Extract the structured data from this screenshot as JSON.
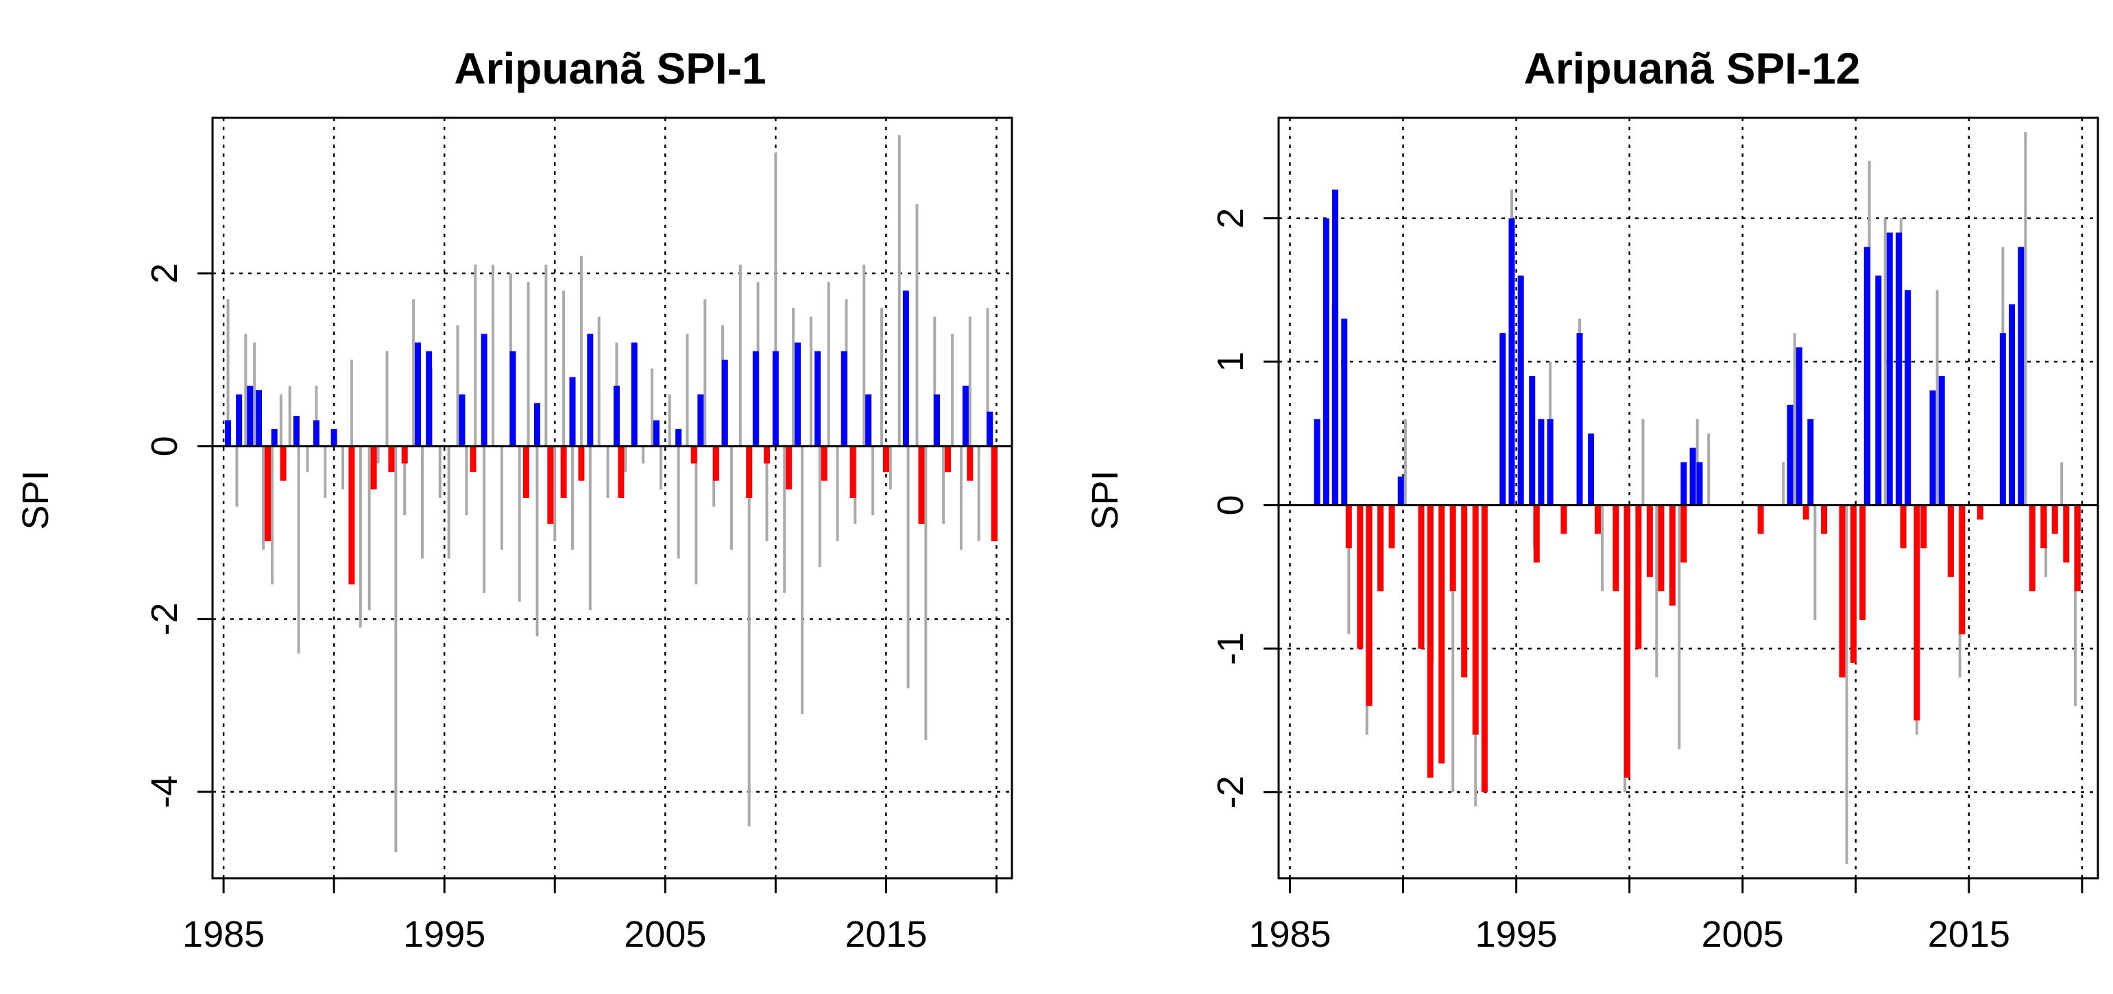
{
  "colors": {
    "positive": "#0000ff",
    "negative": "#ff0000",
    "raw": "#aaaaaa",
    "grid": "#000000"
  },
  "chart_data": [
    {
      "type": "bar",
      "title": "Aripuanã SPI-1",
      "xlabel": "",
      "ylabel": "SPI",
      "xlim": [
        1984.5,
        2020.7
      ],
      "ylim": [
        -5.0,
        3.8
      ],
      "x_ticks": [
        1985,
        1995,
        2005,
        2015
      ],
      "x_grid": [
        1985,
        1990,
        1995,
        2000,
        2005,
        2010,
        2015,
        2020
      ],
      "y_ticks": [
        -4,
        -2,
        0,
        2
      ],
      "x_tick_labels": [
        "1985",
        "1995",
        "2005",
        "2015"
      ],
      "y_tick_labels": [
        "-4",
        "-2",
        "0",
        "2"
      ],
      "series": [
        {
          "name": "SPI (raw monthly)",
          "color": "raw",
          "x": [
            1985.2,
            1985.6,
            1986.0,
            1986.4,
            1986.8,
            1987.2,
            1987.6,
            1988.0,
            1988.4,
            1988.8,
            1989.2,
            1989.6,
            1990.0,
            1990.4,
            1990.8,
            1991.2,
            1991.6,
            1992.0,
            1992.4,
            1992.8,
            1993.2,
            1993.6,
            1994.0,
            1994.4,
            1994.8,
            1995.2,
            1995.6,
            1996.0,
            1996.4,
            1996.8,
            1997.2,
            1997.6,
            1998.0,
            1998.4,
            1998.8,
            1999.2,
            1999.6,
            2000.0,
            2000.4,
            2000.8,
            2001.2,
            2001.6,
            2002.0,
            2002.4,
            2002.8,
            2003.2,
            2003.6,
            2004.0,
            2004.4,
            2004.8,
            2005.2,
            2005.6,
            2006.0,
            2006.4,
            2006.8,
            2007.2,
            2007.6,
            2008.0,
            2008.4,
            2008.8,
            2009.2,
            2009.6,
            2010.0,
            2010.4,
            2010.8,
            2011.2,
            2011.6,
            2012.0,
            2012.4,
            2012.8,
            2013.2,
            2013.6,
            2014.0,
            2014.4,
            2014.8,
            2015.2,
            2015.6,
            2016.0,
            2016.4,
            2016.8,
            2017.2,
            2017.6,
            2018.0,
            2018.4,
            2018.8,
            2019.2,
            2019.6,
            2020.0
          ],
          "values": [
            1.7,
            -0.7,
            1.3,
            1.2,
            -1.2,
            -1.6,
            0.6,
            0.7,
            -2.4,
            -0.3,
            0.7,
            -0.6,
            0.2,
            -0.5,
            1.0,
            -2.1,
            -1.9,
            -0.2,
            1.1,
            -4.7,
            -0.8,
            1.7,
            -1.3,
            0.9,
            -0.6,
            -1.3,
            1.4,
            -0.8,
            2.1,
            -1.7,
            2.1,
            -1.2,
            2.0,
            -1.8,
            1.9,
            -2.2,
            2.1,
            -1.1,
            1.8,
            -1.2,
            2.2,
            -1.9,
            1.5,
            -0.6,
            1.2,
            -0.3,
            0.5,
            -0.2,
            0.9,
            -0.5,
            0.6,
            -1.3,
            1.3,
            -1.6,
            1.7,
            -0.7,
            1.4,
            -1.2,
            2.1,
            -4.4,
            1.9,
            -1.1,
            3.4,
            -1.7,
            1.6,
            -3.1,
            1.5,
            -1.4,
            1.9,
            -1.1,
            1.7,
            -0.9,
            2.1,
            -0.8,
            1.6,
            -0.5,
            3.6,
            -2.8,
            2.8,
            -3.4,
            1.5,
            -0.9,
            1.3,
            -1.2,
            1.5,
            -1.1,
            1.6,
            -1.1
          ]
        },
        {
          "name": "SPI > 0 (smoothed)",
          "color": "positive",
          "x": [
            1985.2,
            1985.7,
            1986.2,
            1986.6,
            1987.3,
            1988.3,
            1989.2,
            1990.0,
            1993.8,
            1994.3,
            1995.8,
            1996.8,
            1998.1,
            1999.2,
            2000.8,
            2001.6,
            2002.8,
            2003.6,
            2004.6,
            2005.6,
            2006.6,
            2007.7,
            2009.1,
            2010.0,
            2011.0,
            2011.9,
            2013.1,
            2014.2,
            2015.9,
            2017.3,
            2018.6,
            2019.7
          ],
          "values": [
            0.3,
            0.6,
            0.7,
            0.65,
            0.2,
            0.35,
            0.3,
            0.2,
            1.2,
            1.1,
            0.6,
            1.3,
            1.1,
            0.5,
            0.8,
            1.3,
            0.7,
            1.2,
            0.3,
            0.2,
            0.6,
            1.0,
            1.1,
            1.1,
            1.2,
            1.1,
            1.1,
            0.6,
            1.8,
            0.6,
            0.7,
            0.4
          ]
        },
        {
          "name": "SPI < 0 (smoothed)",
          "color": "negative",
          "x": [
            1987.0,
            1987.7,
            1990.8,
            1991.8,
            1992.6,
            1993.2,
            1996.3,
            1998.7,
            1999.8,
            2000.4,
            2001.2,
            2003.0,
            2006.3,
            2007.3,
            2008.8,
            2009.6,
            2010.6,
            2012.2,
            2013.5,
            2015.0,
            2016.6,
            2017.8,
            2018.8,
            2019.9
          ],
          "values": [
            -1.1,
            -0.4,
            -1.6,
            -0.5,
            -0.3,
            -0.2,
            -0.3,
            -0.6,
            -0.9,
            -0.6,
            -0.4,
            -0.6,
            -0.2,
            -0.4,
            -0.6,
            -0.2,
            -0.5,
            -0.4,
            -0.6,
            -0.3,
            -0.9,
            -0.3,
            -0.4,
            -1.1
          ]
        }
      ]
    },
    {
      "type": "bar",
      "title": "Aripuanã SPI-12",
      "xlabel": "",
      "ylabel": "SPI",
      "xlim": [
        1984.5,
        2020.7
      ],
      "ylim": [
        -2.6,
        2.7
      ],
      "x_ticks": [
        1985,
        1995,
        2005,
        2015
      ],
      "x_grid": [
        1985,
        1990,
        1995,
        2000,
        2005,
        2010,
        2015,
        2020
      ],
      "y_ticks": [
        -2,
        -1,
        0,
        1,
        2
      ],
      "x_tick_labels": [
        "1985",
        "1995",
        "2005",
        "2015"
      ],
      "y_tick_labels": [
        "-2",
        "-1",
        "0",
        "1",
        "2"
      ],
      "series": [
        {
          "name": "SPI (raw monthly)",
          "color": "raw",
          "x": [
            1986.9,
            1987.6,
            1988.4,
            1989.5,
            1990.1,
            1991.3,
            1992.2,
            1993.2,
            1994.8,
            1995.8,
            1996.5,
            1997.8,
            1998.8,
            1999.8,
            2000.6,
            2001.2,
            2002.2,
            2003.0,
            2003.5,
            2006.8,
            2007.3,
            2008.2,
            2009.6,
            2010.6,
            2011.3,
            2012.0,
            2012.7,
            2013.6,
            2014.6,
            2016.5,
            2017.5,
            2018.4,
            2019.1,
            2019.7
          ],
          "values": [
            1.4,
            -0.9,
            -1.6,
            -0.3,
            0.6,
            -1.1,
            -2.0,
            -2.1,
            2.2,
            -0.3,
            1.0,
            1.3,
            -0.6,
            -2.0,
            0.6,
            -1.2,
            -1.7,
            0.6,
            0.5,
            0.3,
            1.2,
            -0.8,
            -2.5,
            2.4,
            2.0,
            2.0,
            -1.6,
            1.5,
            -1.2,
            1.8,
            2.6,
            -0.5,
            0.3,
            -1.4
          ]
        },
        {
          "name": "SPI > 0 (smoothed)",
          "color": "positive",
          "x": [
            1986.2,
            1986.6,
            1987.0,
            1987.4,
            1989.9,
            1994.4,
            1994.8,
            1995.2,
            1995.7,
            1996.1,
            1996.5,
            1997.8,
            1998.3,
            2002.4,
            2002.8,
            2003.1,
            2007.1,
            2007.5,
            2008.0,
            2010.5,
            2011.0,
            2011.5,
            2011.9,
            2012.3,
            2013.4,
            2013.8,
            2016.5,
            2016.9,
            2017.3
          ],
          "values": [
            0.6,
            2.0,
            2.2,
            1.3,
            0.2,
            1.2,
            2.0,
            1.6,
            0.9,
            0.6,
            0.6,
            1.2,
            0.5,
            0.3,
            0.4,
            0.3,
            0.7,
            1.1,
            0.6,
            1.8,
            1.6,
            1.9,
            1.9,
            1.5,
            0.8,
            0.9,
            1.2,
            1.4,
            1.8
          ]
        },
        {
          "name": "SPI < 0 (smoothed)",
          "color": "negative",
          "x": [
            1987.6,
            1988.1,
            1988.5,
            1989.0,
            1989.5,
            1990.8,
            1991.2,
            1991.7,
            1992.2,
            1992.7,
            1993.2,
            1993.6,
            1995.9,
            1997.1,
            1998.6,
            1999.4,
            1999.9,
            2000.4,
            2000.9,
            2001.4,
            2001.9,
            2002.4,
            2005.8,
            2007.8,
            2008.6,
            2009.4,
            2009.9,
            2010.3,
            2012.1,
            2012.7,
            2013.0,
            2014.2,
            2014.7,
            2015.5,
            2017.8,
            2018.3,
            2018.8,
            2019.3,
            2019.8
          ],
          "values": [
            -0.3,
            -1.0,
            -1.4,
            -0.6,
            -0.3,
            -1.0,
            -1.9,
            -1.8,
            -0.6,
            -1.2,
            -1.6,
            -2.0,
            -0.4,
            -0.2,
            -0.2,
            -0.6,
            -1.9,
            -1.0,
            -0.5,
            -0.6,
            -0.7,
            -0.4,
            -0.2,
            -0.1,
            -0.2,
            -1.2,
            -1.1,
            -0.8,
            -0.3,
            -1.5,
            -0.3,
            -0.5,
            -0.9,
            -0.1,
            -0.6,
            -0.3,
            -0.2,
            -0.4,
            -0.6
          ]
        }
      ]
    }
  ]
}
